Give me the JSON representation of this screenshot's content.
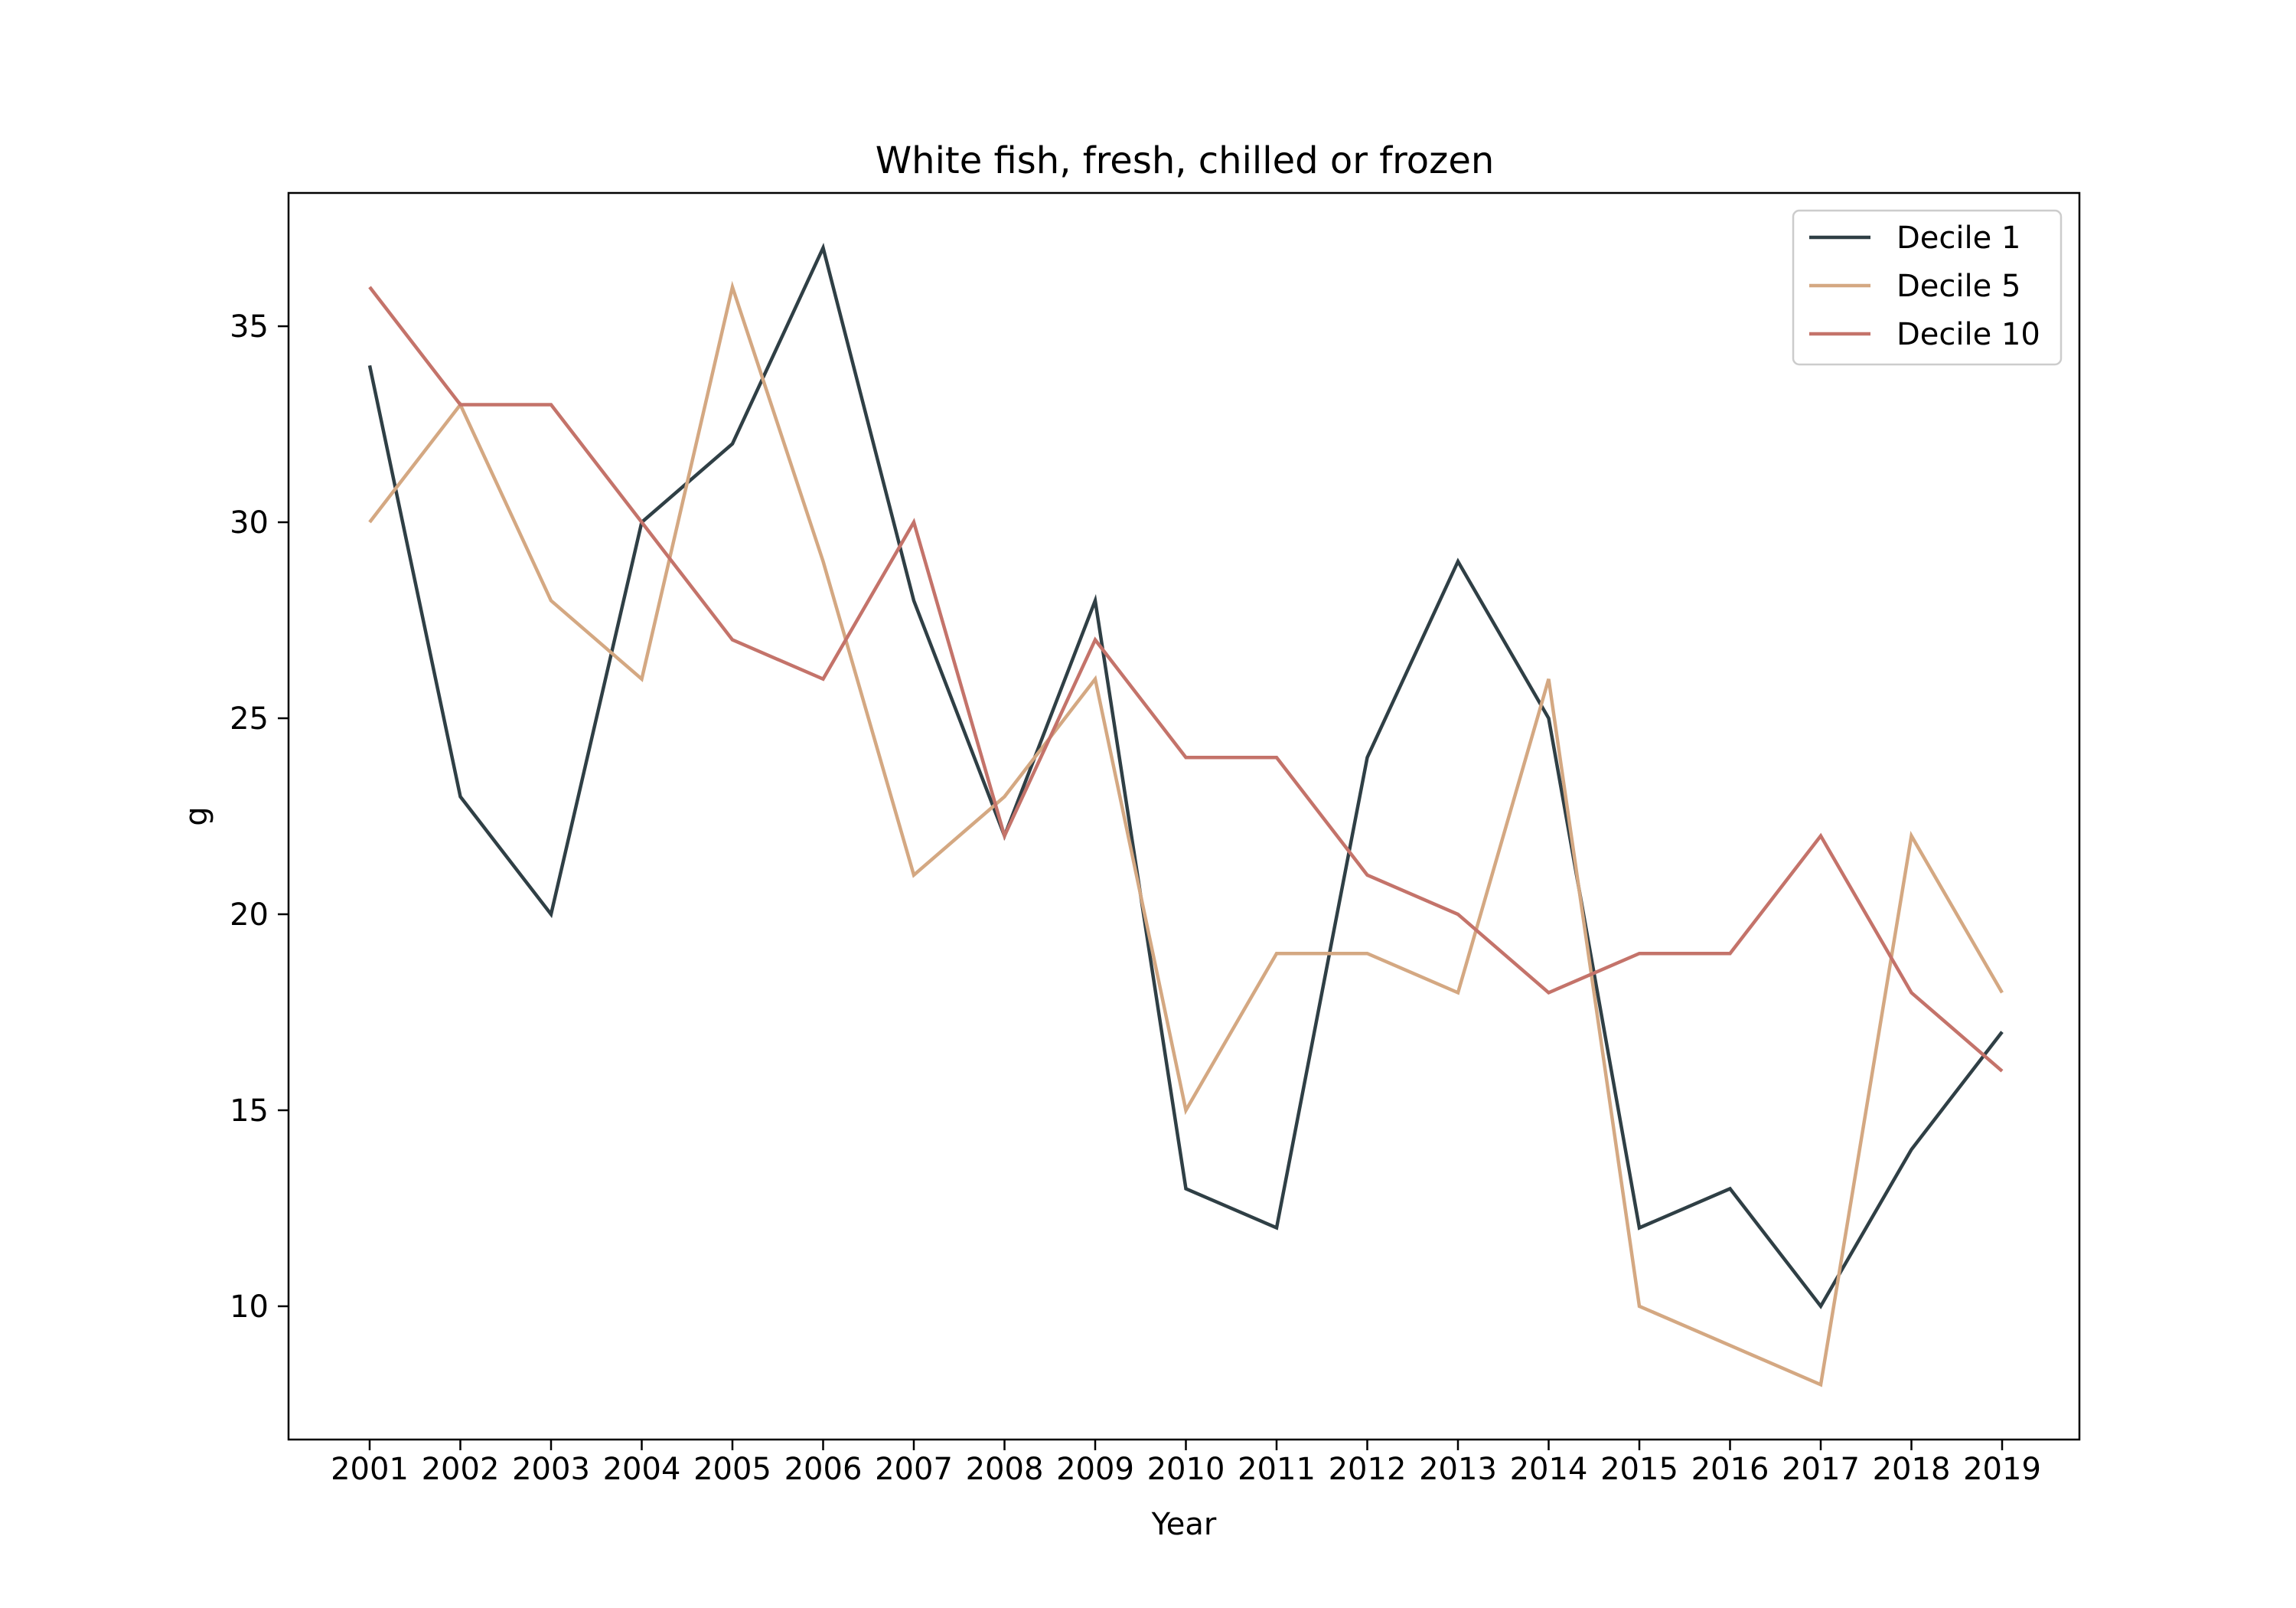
{
  "chart_data": {
    "type": "line",
    "title": "White fish, fresh, chilled or frozen",
    "xlabel": "Year",
    "ylabel": "g",
    "categories": [
      "2001",
      "2002",
      "2003",
      "2004",
      "2005",
      "2006",
      "2007",
      "2008",
      "2009",
      "2010",
      "2011",
      "2012",
      "2013",
      "2014",
      "2015",
      "2016",
      "2017",
      "2018",
      "2019"
    ],
    "ylim": [
      6.6,
      38.4
    ],
    "yticks": [
      10,
      15,
      20,
      25,
      30,
      35
    ],
    "grid": false,
    "legend_position": "top-right",
    "series": [
      {
        "name": "Decile 1",
        "color": "#2f3f45",
        "values": [
          34,
          23,
          20,
          30,
          32,
          37,
          28,
          22,
          28,
          13,
          12,
          24,
          29,
          25,
          12,
          13,
          10,
          14,
          17
        ]
      },
      {
        "name": "Decile 5",
        "color": "#d4a882",
        "values": [
          30,
          33,
          28,
          26,
          36,
          29,
          21,
          23,
          26,
          15,
          19,
          19,
          18,
          26,
          10,
          9,
          8,
          22,
          18
        ]
      },
      {
        "name": "Decile 10",
        "color": "#c4736a",
        "values": [
          36,
          33,
          33,
          30,
          27,
          26,
          30,
          22,
          27,
          24,
          24,
          21,
          20,
          18,
          19,
          19,
          22,
          18,
          16
        ]
      }
    ]
  }
}
